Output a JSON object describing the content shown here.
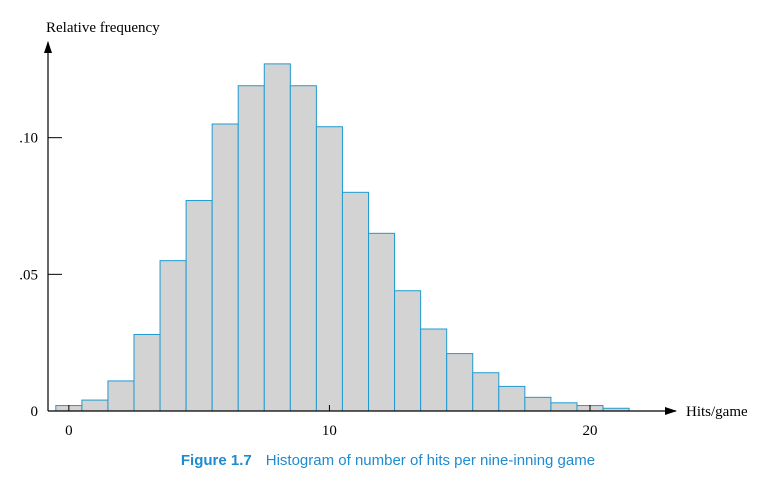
{
  "chart_data": {
    "type": "bar",
    "title": "",
    "xlabel": "Hits/game",
    "ylabel": "Relative frequency",
    "bin_width": 1,
    "bin_starts": [
      -0.5,
      0.5,
      1.5,
      2.5,
      3.5,
      4.5,
      5.5,
      6.5,
      7.5,
      8.5,
      9.5,
      10.5,
      11.5,
      12.5,
      13.5,
      14.5,
      15.5,
      16.5,
      17.5,
      18.5,
      19.5,
      20.5
    ],
    "values": [
      0.002,
      0.004,
      0.011,
      0.028,
      0.055,
      0.077,
      0.105,
      0.119,
      0.127,
      0.119,
      0.104,
      0.08,
      0.065,
      0.044,
      0.03,
      0.021,
      0.014,
      0.009,
      0.005,
      0.003,
      0.002,
      0.001
    ],
    "xlim": [
      -0.8,
      23.3
    ],
    "ylim": [
      0,
      0.135
    ],
    "x_ticks": [
      0,
      10,
      20
    ],
    "x_tick_labels": [
      "0",
      "10",
      "20"
    ],
    "y_ticks": [
      0,
      0.05,
      0.1
    ],
    "y_tick_labels": [
      "0",
      ".05",
      ".10"
    ],
    "grid": false,
    "colors": {
      "bar_fill": "#d3d3d3",
      "bar_stroke": "#1f9bd1",
      "axis": "#000000"
    }
  },
  "caption": {
    "label": "Figure 1.7",
    "text": "Histogram of number of hits per nine-inning game",
    "color": "#1e8bd0"
  }
}
